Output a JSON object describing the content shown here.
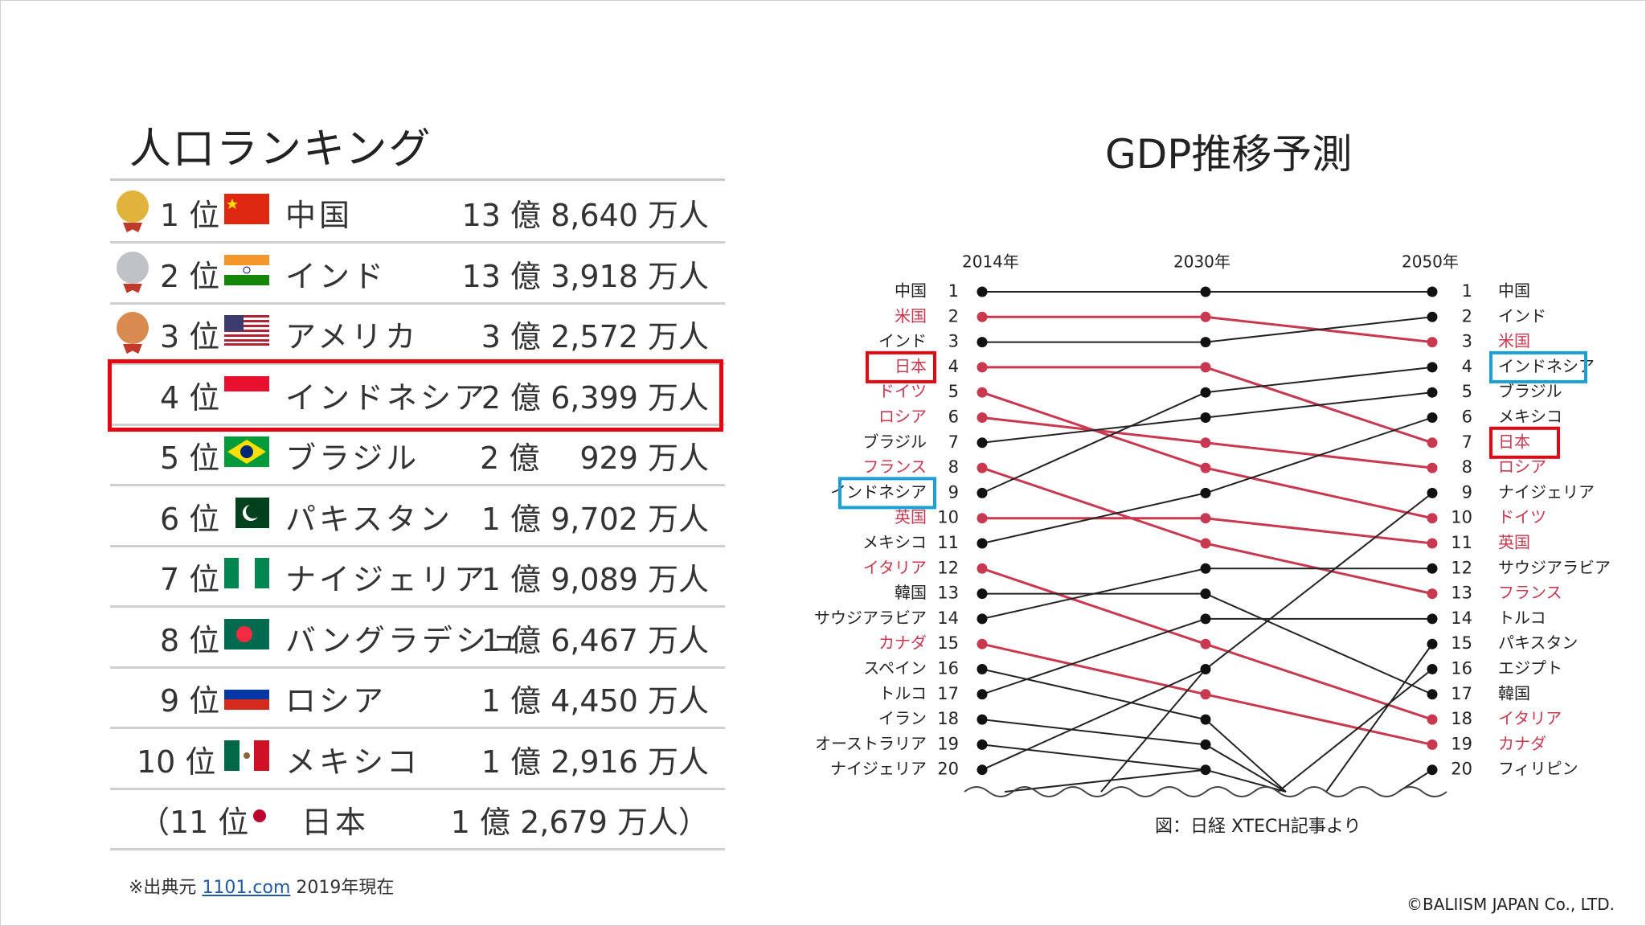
{
  "ranking": {
    "title": "人口ランキング",
    "rows": [
      {
        "rank": "1 位",
        "country": "中国",
        "population": "13 億 8,640 万人",
        "medal": "1"
      },
      {
        "rank": "2 位",
        "country": "インド",
        "population": "13 億 3,918 万人",
        "medal": "2"
      },
      {
        "rank": "3 位",
        "country": "アメリカ",
        "population": "3 億 2,572 万人",
        "medal": "3"
      },
      {
        "rank": "4 位",
        "country": "インドネシア",
        "population": "2 億 6,399 万人"
      },
      {
        "rank": "5 位",
        "country": "ブラジル",
        "population": "2 億　 929 万人"
      },
      {
        "rank": "6 位",
        "country": "パキスタン",
        "population": "1 億 9,702 万人"
      },
      {
        "rank": "7 位",
        "country": "ナイジェリア",
        "population": "1 億 9,089 万人"
      },
      {
        "rank": "8 位",
        "country": "バングラデシュ",
        "population": "1 億 6,467 万人"
      },
      {
        "rank": "9 位",
        "country": "ロシア",
        "population": "1 億 4,450 万人"
      },
      {
        "rank": "10 位",
        "country": "メキシコ",
        "population": "1 億 2,916 万人"
      },
      {
        "rank": "（11 位",
        "country": "日本",
        "population": "1 億 2,679 万人）"
      }
    ],
    "source_prefix": "※出典元 ",
    "source_link": "1101.com",
    "source_suffix": " 2019年現在"
  },
  "gdp": {
    "title": "GDP推移予測",
    "caption": "図：日経 XTECH記事より"
  },
  "copyright": "©BALIISM JAPAN Co., LTD.",
  "colors": {
    "highlight_red": "#e30613",
    "highlight_blue": "#1a9fd6",
    "line_red": "#c8384f",
    "line_black": "#222222",
    "text_red": "#c8384f"
  },
  "chart_data": {
    "type": "line",
    "title": "GDP推移予測",
    "x": [
      "2014年",
      "2030年",
      "2050年"
    ],
    "y_axis": "rank (1 top, 20 bottom)",
    "ylim": [
      1,
      20
    ],
    "left_labels": [
      "中国",
      "米国",
      "インド",
      "日本",
      "ドイツ",
      "ロシア",
      "ブラジル",
      "フランス",
      "インドネシア",
      "英国",
      "メキシコ",
      "イタリア",
      "韓国",
      "サウジアラビア",
      "カナダ",
      "スペイン",
      "トルコ",
      "イラン",
      "オーストラリア",
      "ナイジェリア"
    ],
    "right_labels": [
      "中国",
      "インド",
      "米国",
      "インドネシア",
      "ブラジル",
      "メキシコ",
      "日本",
      "ロシア",
      "ナイジェリア",
      "ドイツ",
      "英国",
      "サウジアラビア",
      "フランス",
      "トルコ",
      "パキスタン",
      "エジプト",
      "韓国",
      "イタリア",
      "カナダ",
      "フィリピン"
    ],
    "red_left": [
      2,
      4,
      5,
      6,
      8,
      10,
      12,
      15
    ],
    "red_right": [
      3,
      7,
      8,
      10,
      11,
      13,
      18,
      19
    ],
    "boxed_left": [
      {
        "rank": 4,
        "color": "red"
      },
      {
        "rank": 9,
        "color": "blue"
      }
    ],
    "boxed_right": [
      {
        "rank": 4,
        "color": "blue"
      },
      {
        "rank": 7,
        "color": "red"
      }
    ],
    "series": [
      {
        "name": "中国",
        "values": [
          1,
          1,
          1
        ]
      },
      {
        "name": "米国",
        "values": [
          2,
          2,
          3
        ]
      },
      {
        "name": "インド",
        "values": [
          3,
          3,
          2
        ]
      },
      {
        "name": "日本",
        "values": [
          4,
          4,
          7
        ]
      },
      {
        "name": "ドイツ",
        "values": [
          5,
          8,
          10
        ]
      },
      {
        "name": "ロシア",
        "values": [
          6,
          7,
          8
        ]
      },
      {
        "name": "ブラジル",
        "values": [
          7,
          6,
          5
        ]
      },
      {
        "name": "フランス",
        "values": [
          8,
          11,
          13
        ]
      },
      {
        "name": "インドネシア",
        "values": [
          9,
          5,
          4
        ]
      },
      {
        "name": "英国",
        "values": [
          10,
          10,
          11
        ]
      },
      {
        "name": "メキシコ",
        "values": [
          11,
          9,
          6
        ]
      },
      {
        "name": "イタリア",
        "values": [
          12,
          15,
          18
        ]
      },
      {
        "name": "韓国",
        "values": [
          13,
          13,
          17
        ]
      },
      {
        "name": "サウジアラビア",
        "values": [
          14,
          12,
          12
        ]
      },
      {
        "name": "カナダ",
        "values": [
          15,
          17,
          19
        ]
      },
      {
        "name": "スペイン",
        "values": [
          16,
          18,
          null
        ]
      },
      {
        "name": "トルコ",
        "values": [
          17,
          14,
          14
        ]
      },
      {
        "name": "イラン",
        "values": [
          18,
          19,
          null
        ]
      },
      {
        "name": "オーストラリア",
        "values": [
          19,
          20,
          null
        ]
      },
      {
        "name": "ナイジェリア",
        "values": [
          20,
          16,
          9
        ]
      }
    ]
  }
}
